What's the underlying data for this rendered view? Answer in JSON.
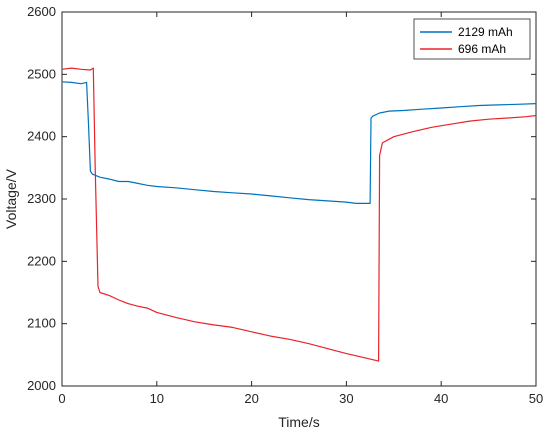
{
  "chart_data": {
    "type": "line",
    "xlabel": "Time/s",
    "ylabel": "Voltage/V",
    "xlim": [
      0,
      50
    ],
    "ylim": [
      2000,
      2600
    ],
    "xticks": [
      0,
      10,
      20,
      30,
      40,
      50
    ],
    "yticks": [
      2000,
      2100,
      2200,
      2300,
      2400,
      2500,
      2600
    ],
    "grid": false,
    "legend_position": "top-right",
    "series": [
      {
        "name": "2129 mAh",
        "color": "#0072BD",
        "x": [
          0,
          1,
          2,
          2.6,
          2.8,
          3.0,
          3.2,
          4,
          5,
          6,
          7,
          8,
          9,
          10,
          12,
          14,
          16,
          18,
          20,
          22,
          24,
          26,
          28,
          30,
          31,
          32,
          32.5,
          32.6,
          32.8,
          33.5,
          34.5,
          36,
          38,
          40,
          42,
          44,
          46,
          48,
          50
        ],
        "y": [
          2488,
          2487,
          2485,
          2487,
          2420,
          2345,
          2340,
          2335,
          2332,
          2328,
          2328,
          2325,
          2322,
          2320,
          2318,
          2315,
          2312,
          2310,
          2308,
          2305,
          2302,
          2299,
          2297,
          2295,
          2293,
          2293,
          2293,
          2430,
          2433,
          2438,
          2441,
          2442,
          2444,
          2446,
          2448,
          2450,
          2451,
          2452,
          2453
        ]
      },
      {
        "name": "696 mAh",
        "color": "#E8232A",
        "x": [
          0,
          1,
          2,
          3,
          3.3,
          3.5,
          3.8,
          4,
          5,
          6,
          7,
          8,
          9,
          10,
          12,
          14,
          16,
          18,
          20,
          22,
          24,
          26,
          28,
          30,
          32,
          33.4,
          33.5,
          33.8,
          35,
          37,
          39,
          41,
          43,
          45,
          47,
          49,
          50
        ],
        "y": [
          2508,
          2510,
          2508,
          2507,
          2510,
          2350,
          2160,
          2150,
          2145,
          2138,
          2132,
          2128,
          2125,
          2118,
          2110,
          2103,
          2098,
          2094,
          2087,
          2080,
          2075,
          2068,
          2060,
          2052,
          2045,
          2040,
          2370,
          2390,
          2400,
          2408,
          2415,
          2420,
          2425,
          2428,
          2430,
          2432,
          2434
        ]
      }
    ]
  }
}
